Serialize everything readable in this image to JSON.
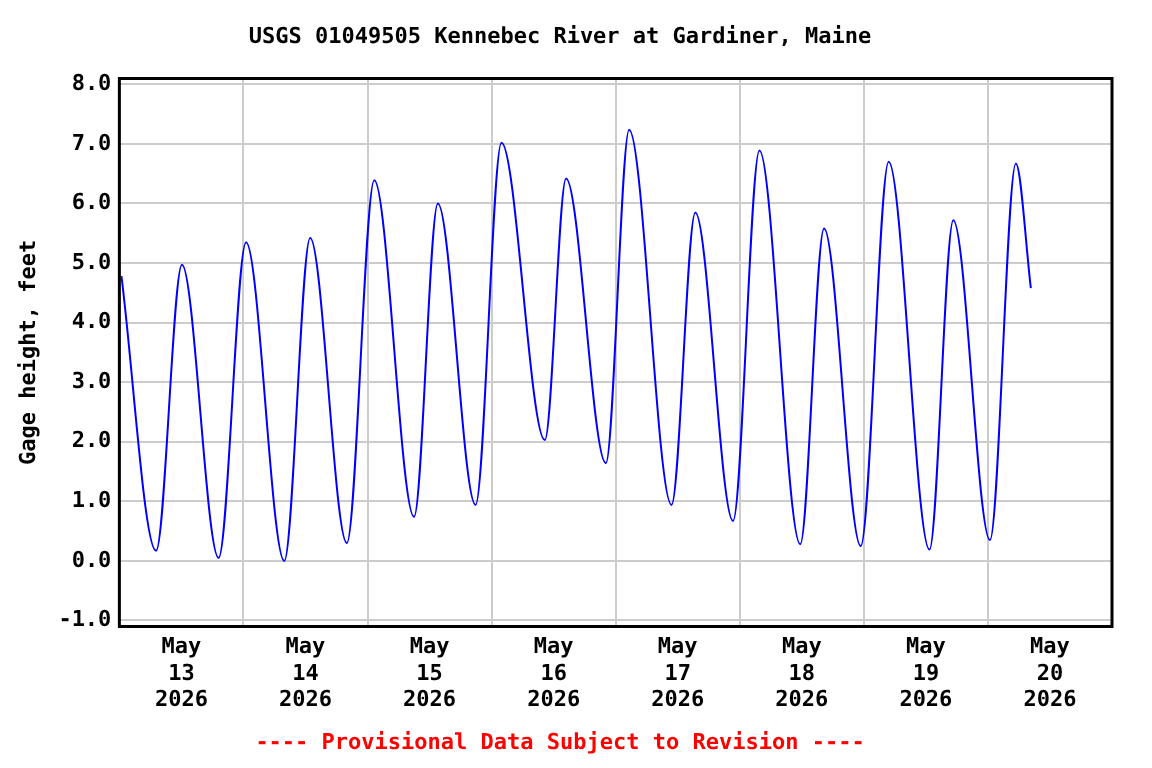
{
  "chart_data": {
    "type": "line",
    "title": "USGS 01049505 Kennebec River at Gardiner, Maine",
    "ylabel": "Gage height, feet",
    "annotations": [
      "---- Provisional Data Subject to Revision ----"
    ],
    "x": [
      "2026-05-13T00:24",
      "2026-05-13T07:06",
      "2026-05-13T12:06",
      "2026-05-13T19:12",
      "2026-05-14T00:30",
      "2026-05-14T07:54",
      "2026-05-14T12:54",
      "2026-05-14T20:00",
      "2026-05-15T01:18",
      "2026-05-15T09:00",
      "2026-05-15T13:36",
      "2026-05-15T20:54",
      "2026-05-16T01:54",
      "2026-05-16T10:18",
      "2026-05-16T14:24",
      "2026-05-16T22:06",
      "2026-05-17T02:36",
      "2026-05-17T10:48",
      "2026-05-17T15:24",
      "2026-05-17T22:42",
      "2026-05-18T03:48",
      "2026-05-18T11:42",
      "2026-05-18T16:18",
      "2026-05-18T23:24",
      "2026-05-19T04:48",
      "2026-05-19T12:42",
      "2026-05-19T17:18",
      "2026-05-20T00:24",
      "2026-05-20T05:24",
      "2026-05-20T08:18"
    ],
    "series": [
      {
        "color": "#0000ff",
        "values": [
          4.78,
          0.17,
          4.97,
          0.05,
          5.35,
          0.0,
          5.42,
          0.3,
          6.39,
          0.74,
          6.0,
          0.94,
          7.02,
          2.03,
          6.42,
          1.64,
          7.24,
          0.94,
          5.85,
          0.67,
          6.89,
          0.28,
          5.58,
          0.25,
          6.7,
          0.19,
          5.72,
          0.35,
          6.67,
          4.58
        ]
      }
    ],
    "xlim": [
      "2026-05-13T00:00",
      "2026-05-21T00:00"
    ],
    "xticks": [
      {
        "value": "2026-05-13T12:00",
        "label": "May\n13\n2026"
      },
      {
        "value": "2026-05-14T00:00",
        "label": null
      },
      {
        "value": "2026-05-14T12:00",
        "label": "May\n14\n2026"
      },
      {
        "value": "2026-05-15T00:00",
        "label": null
      },
      {
        "value": "2026-05-15T12:00",
        "label": "May\n15\n2026"
      },
      {
        "value": "2026-05-16T00:00",
        "label": null
      },
      {
        "value": "2026-05-16T12:00",
        "label": "May\n16\n2026"
      },
      {
        "value": "2026-05-17T00:00",
        "label": null
      },
      {
        "value": "2026-05-17T12:00",
        "label": "May\n17\n2026"
      },
      {
        "value": "2026-05-18T00:00",
        "label": null
      },
      {
        "value": "2026-05-18T12:00",
        "label": "May\n18\n2026"
      },
      {
        "value": "2026-05-19T00:00",
        "label": null
      },
      {
        "value": "2026-05-19T12:00",
        "label": "May\n19\n2026"
      },
      {
        "value": "2026-05-20T00:00",
        "label": null
      },
      {
        "value": "2026-05-20T12:00",
        "label": "May\n20\n2026"
      },
      {
        "value": "2026-05-21T00:00",
        "label": null
      }
    ],
    "ylim": [
      -1.1,
      8.1
    ],
    "yticks": [
      {
        "value": -1,
        "label": "-1.0"
      },
      {
        "value": 0,
        "label": "0.0"
      },
      {
        "value": 1,
        "label": "1.0"
      },
      {
        "value": 2,
        "label": "2.0"
      },
      {
        "value": 3,
        "label": "3.0"
      },
      {
        "value": 4,
        "label": "4.0"
      },
      {
        "value": 5,
        "label": "5.0"
      },
      {
        "value": 6,
        "label": "6.0"
      },
      {
        "value": 7,
        "label": "7.0"
      },
      {
        "value": 8,
        "label": "8.0"
      }
    ],
    "grid": true,
    "legend": false,
    "marker": "none",
    "line_style": "solid"
  }
}
